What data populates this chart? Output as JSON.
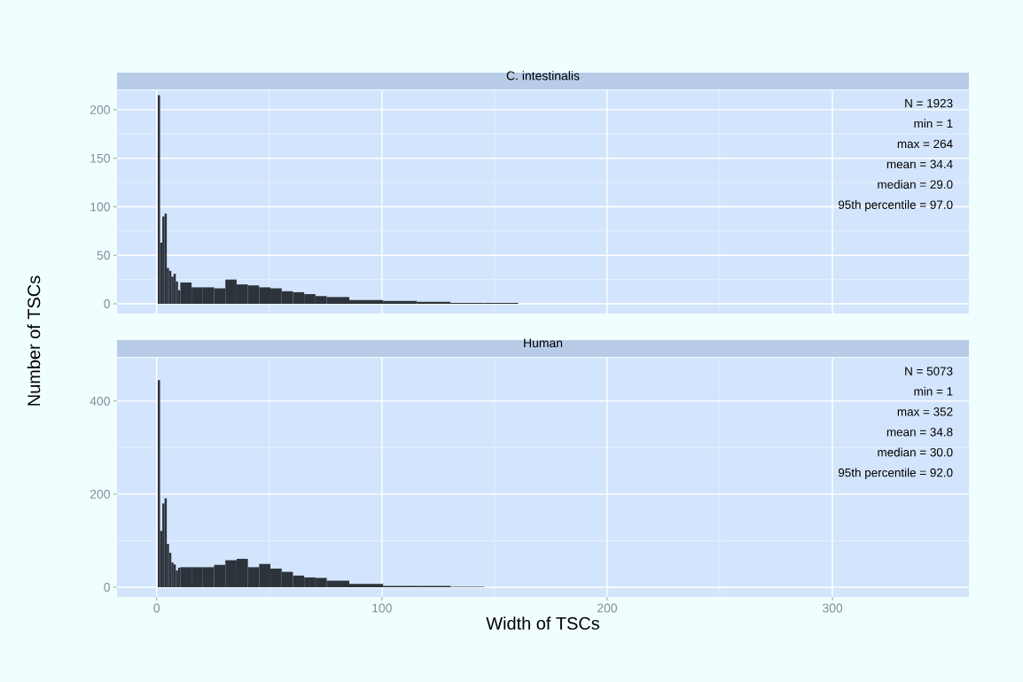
{
  "chart_data": [
    {
      "type": "histogram",
      "title": "C. intestinalis",
      "ylabel": "Number of TSCs",
      "bins": [
        0.5,
        1.5,
        2.5,
        3.5,
        4.5,
        5.5,
        6.5,
        7.5,
        8.5,
        9.5,
        10.5,
        15.5,
        20.5,
        25.5,
        30.5,
        35.5,
        40.5,
        45.5,
        50.5,
        55.5,
        60.5,
        65.5,
        70.5,
        75.5,
        85.5,
        100.5,
        115.5,
        130.5,
        145.5,
        160.5
      ],
      "values": [
        215,
        63,
        90,
        93,
        37,
        34,
        28,
        31,
        23,
        14,
        22,
        17,
        17,
        16,
        25,
        20,
        19,
        17,
        16,
        13,
        12,
        10,
        8,
        7,
        4,
        3,
        2,
        1,
        1
      ],
      "color": "#2d333b",
      "xlim": [
        -17.6,
        360.6
      ],
      "ylim": [
        -10,
        220
      ],
      "xticks": [
        0,
        100,
        200,
        300
      ],
      "yticks": [
        0,
        50,
        100,
        150,
        200
      ],
      "grid": true,
      "tick_labels": "y",
      "annotations": [
        "N = 1923",
        "min = 1",
        "max = 264",
        "mean = 34.4",
        "median = 29.0",
        "95th percentile = 97.0"
      ]
    },
    {
      "type": "histogram",
      "title": "Human",
      "xlabel": "Width of TSCs",
      "bins": [
        0.5,
        1.5,
        2.5,
        3.5,
        4.5,
        5.5,
        6.5,
        7.5,
        8.5,
        9.5,
        10.5,
        15.5,
        20.5,
        25.5,
        30.5,
        35.5,
        40.5,
        45.5,
        50.5,
        55.5,
        60.5,
        65.5,
        70.5,
        75.5,
        85.5,
        100.5,
        115.5,
        130.5,
        145.5
      ],
      "values": [
        445,
        121,
        180,
        191,
        93,
        74,
        53,
        49,
        36,
        42,
        43,
        43,
        43,
        48,
        58,
        61,
        43,
        50,
        40,
        33,
        25,
        21,
        20,
        14,
        7,
        3,
        3,
        1
      ],
      "color": "#2d333b",
      "xlim": [
        -17.6,
        360.6
      ],
      "ylim": [
        -21,
        493
      ],
      "xticks": [
        0,
        100,
        200,
        300
      ],
      "yticks": [
        0,
        200,
        400
      ],
      "grid": true,
      "annotations": [
        "N = 5073",
        "min = 1",
        "max = 352",
        "mean = 34.8",
        "median = 30.0",
        "95th percentile = 92.0"
      ]
    }
  ]
}
